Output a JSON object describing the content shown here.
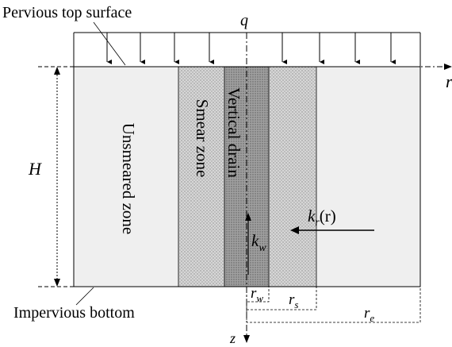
{
  "labels": {
    "top_surface": "Pervious top surface",
    "load": "q",
    "radial_axis": "r",
    "depth_axis": "z",
    "height": "H",
    "unsmeared_zone": "Unsmeared zone",
    "smear_zone": "Smear zone",
    "vertical_drain": "Vertical drain",
    "permeability_radial": "k",
    "permeability_radial_sub": "r",
    "permeability_radial_arg": "(r)",
    "permeability_drain": "k",
    "permeability_drain_sub": "w",
    "bottom": "Impervious bottom",
    "radius_drain": "r",
    "radius_drain_sub": "w",
    "radius_smear": "r",
    "radius_smear_sub": "s",
    "radius_influence": "r",
    "radius_influence_sub": "e"
  },
  "colors": {
    "unsmeared_fill": "#efefef",
    "smear_fill": "#d4d4d4",
    "drain_fill": "#9c9c9c",
    "line": "#000000"
  }
}
